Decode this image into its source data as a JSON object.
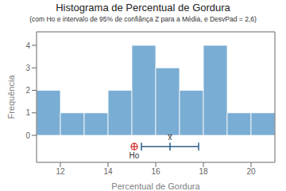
{
  "chart_data": {
    "type": "histogram",
    "title": "Histograma de Percentual de Gordura",
    "subtitle": "(com Ho e intervalo de 95% de confiânça Z para a Média, e DesvPad = 2,6)",
    "xlabel": "Percentual de Gordura",
    "ylabel": "Frequência",
    "bins": [
      11,
      12,
      13,
      14,
      15,
      16,
      17,
      18,
      19,
      20,
      21
    ],
    "values": [
      2,
      1,
      1,
      2,
      4,
      3,
      2,
      4,
      1,
      1
    ],
    "color": "#7aadd4",
    "xlim": [
      11,
      21
    ],
    "ylim": [
      -1.2,
      4.6
    ],
    "xticks": [
      12,
      14,
      16,
      18,
      20
    ],
    "yticks": [
      0,
      1,
      2,
      3,
      4
    ],
    "grid": false,
    "annotations": [
      {
        "type": "marker",
        "label": "Ho",
        "x": 15.1,
        "y": -0.5,
        "color": "#cc2222"
      },
      {
        "type": "interval",
        "x_low": 15.4,
        "x_high": 17.8,
        "y": -0.5,
        "color": "#2b5f8a"
      },
      {
        "type": "mark",
        "label": "x̅",
        "x": 16.6,
        "y": -0.5,
        "color": "#2b5f8a"
      }
    ]
  }
}
